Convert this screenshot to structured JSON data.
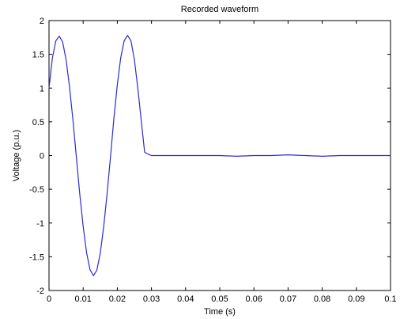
{
  "chart_data": {
    "type": "line",
    "title": "Recorded waveform",
    "xlabel": "Time (s)",
    "ylabel": "Voltage (p.u.)",
    "xlim": [
      0,
      0.1
    ],
    "ylim": [
      -2,
      2
    ],
    "x_ticks": [
      "0",
      "0.01",
      "0.02",
      "0.03",
      "0.04",
      "0.05",
      "0.06",
      "0.07",
      "0.08",
      "0.09",
      "0.1"
    ],
    "y_ticks": [
      "2",
      "1.5",
      "1",
      "0.5",
      "0",
      "-0.5",
      "-1",
      "-1.5",
      "-2"
    ],
    "grid": false,
    "legend": "none",
    "series": [
      {
        "color": "#2a2ad8",
        "x": [
          0,
          0.001,
          0.002,
          0.003,
          0.004,
          0.005,
          0.006,
          0.007,
          0.008,
          0.009,
          0.01,
          0.011,
          0.012,
          0.013,
          0.014,
          0.015,
          0.016,
          0.017,
          0.018,
          0.019,
          0.02,
          0.021,
          0.022,
          0.023,
          0.024,
          0.025,
          0.026,
          0.027,
          0.028,
          0.029,
          0.03,
          0.035,
          0.04,
          0.045,
          0.05,
          0.055,
          0.06,
          0.065,
          0.07,
          0.075,
          0.08,
          0.085,
          0.09,
          0.095,
          0.1
        ],
        "y": [
          1.0,
          1.45,
          1.7,
          1.77,
          1.68,
          1.42,
          1.02,
          0.53,
          -0.02,
          -0.57,
          -1.05,
          -1.44,
          -1.69,
          -1.78,
          -1.7,
          -1.45,
          -1.06,
          -0.57,
          -0.02,
          0.55,
          1.05,
          1.45,
          1.7,
          1.78,
          1.7,
          1.42,
          1.0,
          0.52,
          0.05,
          0.02,
          0.0,
          0.0,
          0.0,
          0.0,
          0.0,
          -0.01,
          0.0,
          0.0,
          0.01,
          0.0,
          -0.01,
          0.0,
          0.0,
          0.0,
          0.0
        ]
      }
    ]
  }
}
